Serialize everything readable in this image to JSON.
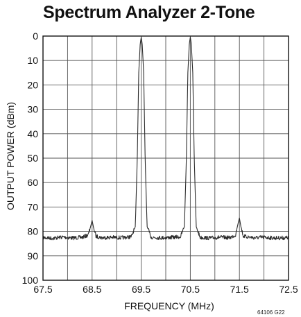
{
  "title": "Spectrum Analyzer 2-Tone",
  "figure_id": "64106 G22",
  "chart_data": {
    "type": "line",
    "title": "Spectrum Analyzer 2-Tone",
    "xlabel": "FREQUENCY (MHz)",
    "ylabel": "OUTPUT POWER (dBm)",
    "xlim": [
      67.5,
      72.5
    ],
    "ylim": [
      0,
      100
    ],
    "y_inverted": true,
    "x_ticks": [
      67.5,
      68,
      68.5,
      69,
      69.5,
      70,
      70.5,
      71,
      71.5,
      72,
      72.5
    ],
    "x_tick_labels": [
      "67.5",
      "68.5",
      "69.5",
      "70.5",
      "71.5",
      "72.5"
    ],
    "y_ticks": [
      0,
      10,
      20,
      30,
      40,
      50,
      60,
      70,
      80,
      90,
      100
    ],
    "y_tick_labels": [
      "0",
      "10",
      "20",
      "30",
      "40",
      "50",
      "60",
      "70",
      "80",
      "90",
      "100"
    ],
    "grid": true,
    "line_color": "#2b2b2b",
    "series": [
      {
        "x": [
          67.5,
          67.7,
          67.9,
          68.1,
          68.3,
          68.42,
          68.47,
          68.5,
          68.53,
          68.58,
          68.7,
          68.9,
          69.1,
          69.3,
          69.38,
          69.42,
          69.45,
          69.48,
          69.5,
          69.52,
          69.55,
          69.58,
          69.62,
          69.7,
          69.9,
          70.1,
          70.3,
          70.38,
          70.42,
          70.45,
          70.48,
          70.5,
          70.52,
          70.55,
          70.58,
          70.62,
          70.7,
          70.9,
          71.1,
          71.3,
          71.42,
          71.47,
          71.5,
          71.53,
          71.58,
          71.8,
          72.0,
          72.2,
          72.5
        ],
        "y": [
          82.5,
          82.8,
          82.3,
          82.7,
          82.4,
          81.5,
          78,
          75.5,
          78.5,
          82,
          82.6,
          82.4,
          82.6,
          82.2,
          78,
          50,
          15,
          3,
          0.5,
          3,
          15,
          50,
          78,
          82.4,
          82.6,
          82.5,
          82.2,
          78,
          50,
          15,
          3,
          0.5,
          3,
          15,
          50,
          78,
          82.5,
          82.7,
          82.4,
          82.6,
          81.5,
          77,
          74.5,
          78,
          82,
          82.6,
          82.4,
          82.7,
          82.6
        ]
      }
    ]
  }
}
